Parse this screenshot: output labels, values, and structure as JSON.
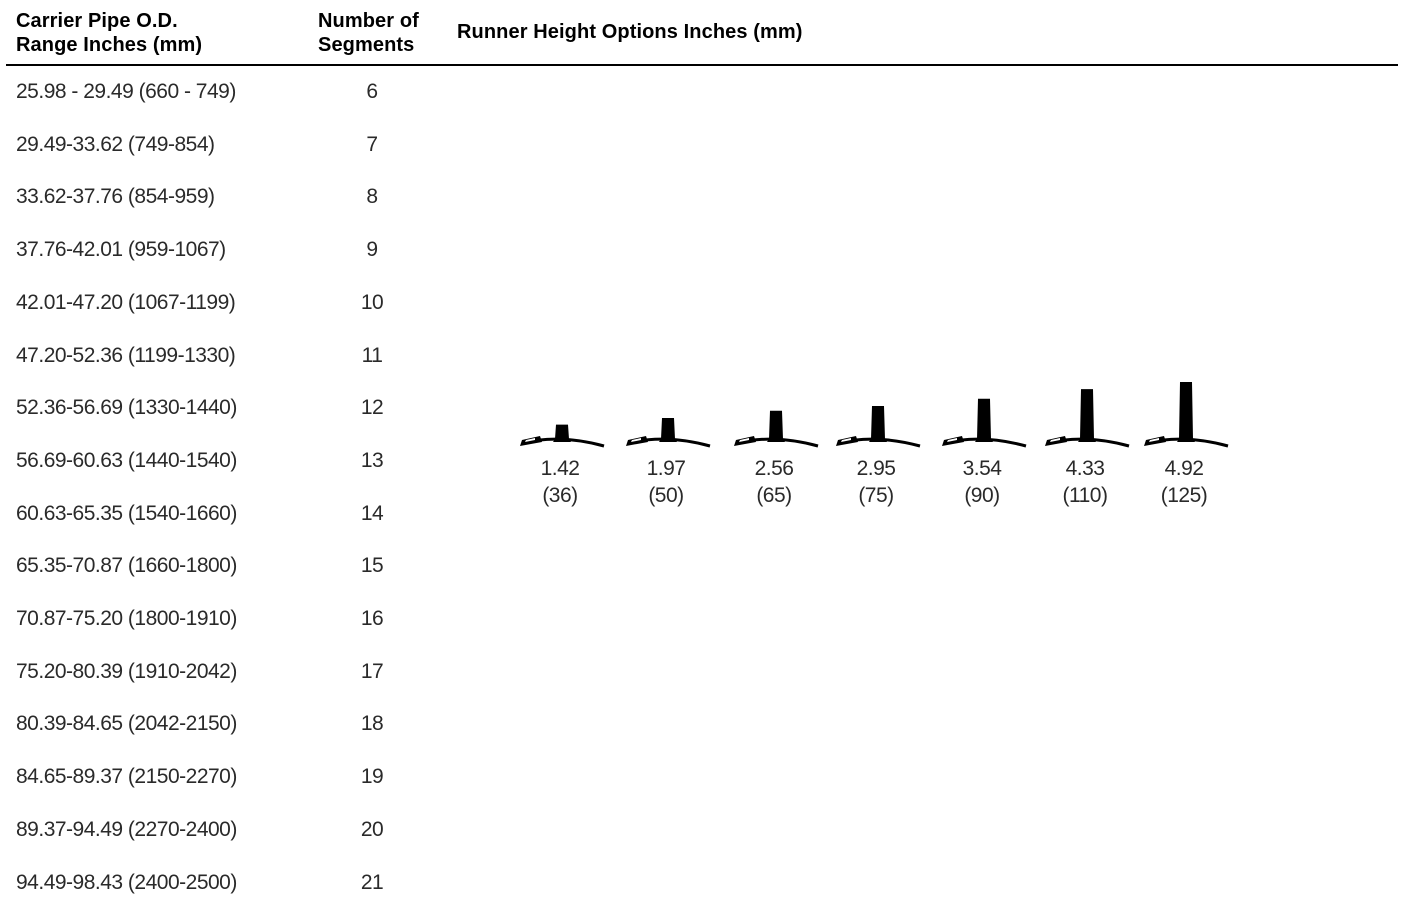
{
  "table": {
    "headers": {
      "col1_line1": "Carrier Pipe O.D.",
      "col1_line2": "Range Inches (mm)",
      "col2_line1": "Number of",
      "col2_line2": "Segments",
      "col3": "Runner Height Options Inches (mm)"
    },
    "rows": [
      {
        "range": "25.98 - 29.49 (660 - 749)",
        "segments": "6"
      },
      {
        "range": "29.49-33.62 (749-854)",
        "segments": "7"
      },
      {
        "range": "33.62-37.76 (854-959)",
        "segments": "8"
      },
      {
        "range": "37.76-42.01 (959-1067)",
        "segments": "9"
      },
      {
        "range": "42.01-47.20 (1067-1199)",
        "segments": "10"
      },
      {
        "range": "47.20-52.36 (1199-1330)",
        "segments": "11"
      },
      {
        "range": "52.36-56.69 (1330-1440)",
        "segments": "12"
      },
      {
        "range": "56.69-60.63 (1440-1540)",
        "segments": "13"
      },
      {
        "range": "60.63-65.35 (1540-1660)",
        "segments": "14"
      },
      {
        "range": "65.35-70.87 (1660-1800)",
        "segments": "15"
      },
      {
        "range": "70.87-75.20 (1800-1910)",
        "segments": "16"
      },
      {
        "range": "75.20-80.39 (1910-2042)",
        "segments": "17"
      },
      {
        "range": "80.39-84.65 (2042-2150)",
        "segments": "18"
      },
      {
        "range": "84.65-89.37 (2150-2270)",
        "segments": "19"
      },
      {
        "range": "89.37-94.49 (2270-2400)",
        "segments": "20"
      },
      {
        "range": "94.49-98.43 (2400-2500)",
        "segments": "21"
      }
    ]
  },
  "runner_options": [
    {
      "inches": "1.42",
      "mm": "(36)",
      "height_value": 1.42
    },
    {
      "inches": "1.97",
      "mm": "(50)",
      "height_value": 1.97
    },
    {
      "inches": "2.56",
      "mm": "(65)",
      "height_value": 2.56
    },
    {
      "inches": "2.95",
      "mm": "(75)",
      "height_value": 2.95
    },
    {
      "inches": "3.54",
      "mm": "(90)",
      "height_value": 3.54
    },
    {
      "inches": "4.33",
      "mm": "(110)",
      "height_value": 4.33
    },
    {
      "inches": "4.92",
      "mm": "(125)",
      "height_value": 4.92
    }
  ],
  "colors": {
    "text": "#2a2a2a",
    "header": "#000000",
    "rule": "#000000",
    "runner": "#000000"
  },
  "icons": {
    "runner": "runner-profile-icon"
  }
}
